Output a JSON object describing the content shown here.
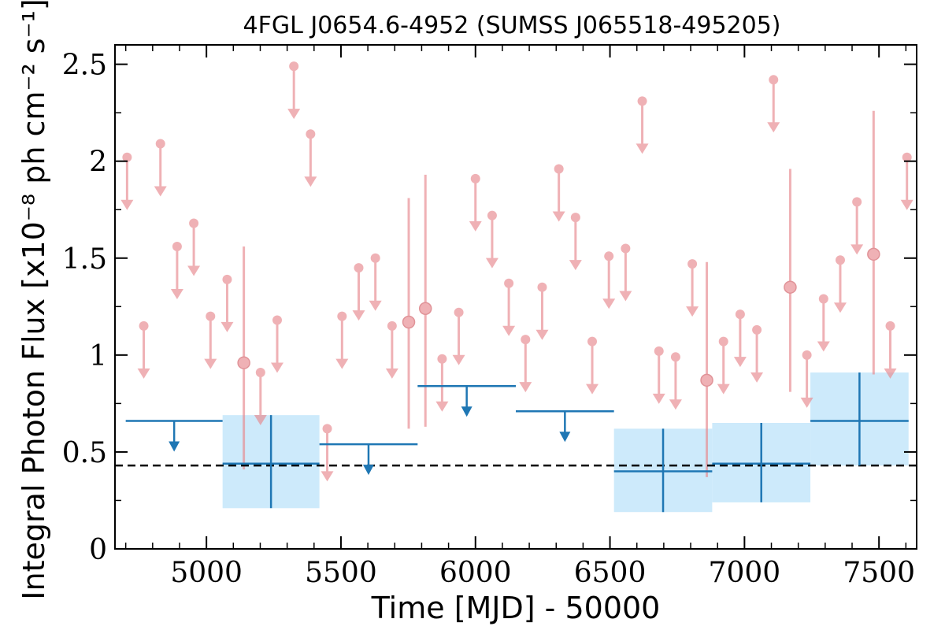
{
  "chart_data": {
    "type": "scatter",
    "title": "4FGL J0654.6-4952 (SUMSS J065518-495205)",
    "xlabel": "Time [MJD] - 50000",
    "ylabel": "Integral Photon Flux [x10⁻⁸ ph cm⁻² s⁻¹]",
    "xlim": [
      4660,
      7640
    ],
    "ylim": [
      0,
      2.6
    ],
    "x_ticks": [
      5000,
      5500,
      6000,
      6500,
      7000,
      7500
    ],
    "x_tick_labels": [
      "5000",
      "5500",
      "6000",
      "6500",
      "7000",
      "7500"
    ],
    "y_ticks": [
      0,
      0.5,
      1,
      1.5,
      2,
      2.5
    ],
    "y_tick_labels": [
      "0",
      "0.5",
      "1",
      "1.5",
      "2",
      "2.5"
    ],
    "mean_flux": 0.43,
    "colors": {
      "short_bins": "#e8888e",
      "long_bins": "#1f77b4",
      "long_bins_band": "#cdeafb",
      "mean_line": "#000000"
    },
    "short_bins": {
      "upper_limits": [
        {
          "x": 4705,
          "y": 2.02
        },
        {
          "x": 4767,
          "y": 1.15
        },
        {
          "x": 4829,
          "y": 2.09
        },
        {
          "x": 4891,
          "y": 1.56
        },
        {
          "x": 4953,
          "y": 1.68
        },
        {
          "x": 5015,
          "y": 1.2
        },
        {
          "x": 5077,
          "y": 1.39
        },
        {
          "x": 5201,
          "y": 0.91
        },
        {
          "x": 5263,
          "y": 1.18
        },
        {
          "x": 5325,
          "y": 2.49
        },
        {
          "x": 5387,
          "y": 2.14
        },
        {
          "x": 5449,
          "y": 0.62
        },
        {
          "x": 5504,
          "y": 1.2
        },
        {
          "x": 5566,
          "y": 1.45
        },
        {
          "x": 5628,
          "y": 1.5
        },
        {
          "x": 5690,
          "y": 1.15
        },
        {
          "x": 5876,
          "y": 0.98
        },
        {
          "x": 5938,
          "y": 1.22
        },
        {
          "x": 6000,
          "y": 1.91
        },
        {
          "x": 6062,
          "y": 1.72
        },
        {
          "x": 6124,
          "y": 1.37
        },
        {
          "x": 6186,
          "y": 1.08
        },
        {
          "x": 6248,
          "y": 1.35
        },
        {
          "x": 6310,
          "y": 1.96
        },
        {
          "x": 6372,
          "y": 1.71
        },
        {
          "x": 6434,
          "y": 1.07
        },
        {
          "x": 6496,
          "y": 1.51
        },
        {
          "x": 6558,
          "y": 1.55
        },
        {
          "x": 6620,
          "y": 2.31
        },
        {
          "x": 6682,
          "y": 1.02
        },
        {
          "x": 6744,
          "y": 0.99
        },
        {
          "x": 6806,
          "y": 1.47
        },
        {
          "x": 6922,
          "y": 1.07
        },
        {
          "x": 6984,
          "y": 1.21
        },
        {
          "x": 7046,
          "y": 1.13
        },
        {
          "x": 7108,
          "y": 2.42
        },
        {
          "x": 7232,
          "y": 1.0
        },
        {
          "x": 7294,
          "y": 1.29
        },
        {
          "x": 7356,
          "y": 1.49
        },
        {
          "x": 7418,
          "y": 1.79
        },
        {
          "x": 7542,
          "y": 1.15
        },
        {
          "x": 7604,
          "y": 2.02
        }
      ],
      "detections": [
        {
          "x": 5139,
          "y": 0.96,
          "ylo": 0.41,
          "yhi": 1.56
        },
        {
          "x": 5752,
          "y": 1.17,
          "ylo": 0.62,
          "yhi": 1.81
        },
        {
          "x": 5814,
          "y": 1.24,
          "ylo": 0.63,
          "yhi": 1.93
        },
        {
          "x": 6860,
          "y": 0.87,
          "ylo": 0.37,
          "yhi": 1.48
        },
        {
          "x": 7170,
          "y": 1.35,
          "ylo": 0.81,
          "yhi": 1.96
        },
        {
          "x": 7480,
          "y": 1.52,
          "ylo": 0.9,
          "yhi": 2.26
        }
      ]
    },
    "long_bins": {
      "upper_limits": [
        {
          "x0": 4700,
          "x1": 5060,
          "y": 0.66
        },
        {
          "x0": 5420,
          "x1": 5785,
          "y": 0.54
        },
        {
          "x0": 5785,
          "x1": 6150,
          "y": 0.84
        },
        {
          "x0": 6150,
          "x1": 6515,
          "y": 0.71
        }
      ],
      "detections": [
        {
          "x0": 5060,
          "x1": 5420,
          "y": 0.44,
          "ylo": 0.21,
          "yhi": 0.69
        },
        {
          "x0": 6515,
          "x1": 6880,
          "y": 0.4,
          "ylo": 0.19,
          "yhi": 0.62
        },
        {
          "x0": 6880,
          "x1": 7245,
          "y": 0.44,
          "ylo": 0.24,
          "yhi": 0.65
        },
        {
          "x0": 7245,
          "x1": 7610,
          "y": 0.66,
          "ylo": 0.43,
          "yhi": 0.91
        }
      ]
    }
  }
}
